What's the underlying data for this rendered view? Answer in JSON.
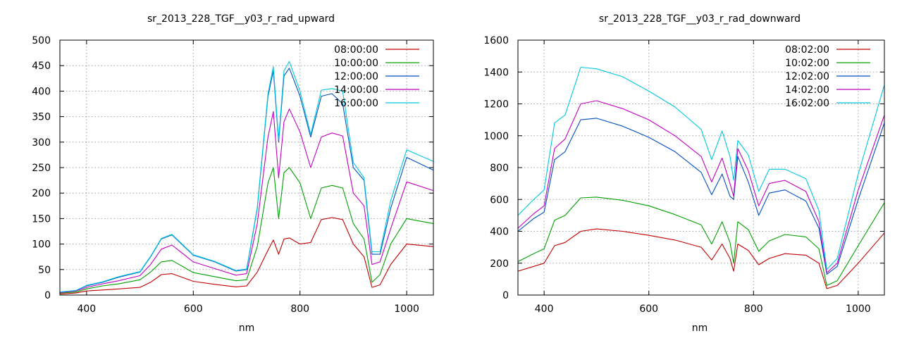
{
  "colors": [
    "#c00000",
    "#00a000",
    "#0050c0",
    "#c000c0",
    "#00c8e0"
  ],
  "chart_data": [
    {
      "type": "line",
      "title": "sr_2013_228_TGF__y03_r_rad_upward",
      "xlabel": "nm",
      "ylabel": "",
      "xlim": [
        350,
        1050
      ],
      "ylim": [
        0,
        500
      ],
      "xticks": [
        400,
        600,
        800,
        1000
      ],
      "yticks": [
        0,
        50,
        100,
        150,
        200,
        250,
        300,
        350,
        400,
        450,
        500
      ],
      "grid": true,
      "legend_position": "top-right",
      "legend": [
        "08:00:00",
        "10:00:00",
        "12:00:00",
        "14:00:00",
        "16:00:00"
      ],
      "x": [
        350,
        380,
        400,
        430,
        460,
        500,
        520,
        540,
        560,
        600,
        640,
        680,
        700,
        720,
        740,
        750,
        760,
        770,
        780,
        800,
        820,
        840,
        860,
        880,
        900,
        920,
        935,
        950,
        970,
        1000,
        1050
      ],
      "series": [
        {
          "values": [
            2,
            4,
            8,
            10,
            12,
            15,
            25,
            40,
            42,
            27,
            21,
            16,
            18,
            45,
            88,
            108,
            80,
            110,
            112,
            100,
            103,
            148,
            152,
            148,
            100,
            75,
            15,
            20,
            60,
            100,
            95
          ]
        },
        {
          "values": [
            4,
            6,
            12,
            18,
            22,
            30,
            45,
            65,
            68,
            44,
            36,
            28,
            30,
            95,
            220,
            250,
            150,
            240,
            250,
            220,
            150,
            210,
            215,
            210,
            140,
            110,
            25,
            40,
            100,
            150,
            140
          ]
        },
        {
          "values": [
            6,
            9,
            18,
            25,
            35,
            45,
            75,
            110,
            118,
            78,
            65,
            47,
            50,
            170,
            390,
            440,
            300,
            430,
            445,
            390,
            310,
            390,
            395,
            375,
            250,
            225,
            80,
            80,
            170,
            270,
            245
          ]
        },
        {
          "values": [
            5,
            8,
            15,
            22,
            28,
            38,
            60,
            90,
            98,
            65,
            52,
            39,
            42,
            140,
            310,
            360,
            230,
            340,
            365,
            320,
            250,
            310,
            318,
            312,
            200,
            175,
            60,
            65,
            130,
            222,
            205
          ]
        },
        {
          "values": [
            6,
            9,
            19,
            26,
            36,
            46,
            76,
            111,
            119,
            79,
            66,
            48,
            51,
            172,
            395,
            448,
            305,
            440,
            458,
            400,
            315,
            402,
            405,
            400,
            260,
            230,
            85,
            85,
            185,
            285,
            262
          ]
        }
      ]
    },
    {
      "type": "line",
      "title": "sr_2013_228_TGF__y03_r_rad_downward",
      "xlabel": "nm",
      "ylabel": "",
      "xlim": [
        350,
        1050
      ],
      "ylim": [
        0,
        1600
      ],
      "xticks": [
        400,
        600,
        800,
        1000
      ],
      "yticks": [
        0,
        200,
        400,
        600,
        800,
        1000,
        1200,
        1400,
        1600
      ],
      "grid": true,
      "legend_position": "top-right",
      "legend": [
        "08:02:00",
        "10:02:00",
        "12:02:00",
        "14:02:00",
        "16:02:00"
      ],
      "x": [
        350,
        380,
        400,
        420,
        440,
        470,
        500,
        550,
        600,
        650,
        700,
        720,
        740,
        755,
        762,
        770,
        790,
        810,
        830,
        860,
        900,
        925,
        940,
        960,
        1000,
        1050
      ],
      "series": [
        {
          "values": [
            150,
            180,
            200,
            310,
            330,
            400,
            415,
            400,
            375,
            345,
            300,
            220,
            320,
            230,
            150,
            320,
            280,
            190,
            230,
            260,
            250,
            200,
            40,
            60,
            200,
            390
          ]
        },
        {
          "values": [
            210,
            260,
            290,
            470,
            500,
            610,
            615,
            595,
            560,
            505,
            440,
            320,
            460,
            330,
            200,
            460,
            410,
            275,
            340,
            380,
            365,
            290,
            60,
            90,
            310,
            580
          ]
        },
        {
          "values": [
            400,
            480,
            520,
            850,
            900,
            1100,
            1110,
            1060,
            990,
            900,
            770,
            630,
            760,
            620,
            600,
            870,
            710,
            500,
            640,
            660,
            590,
            420,
            130,
            180,
            600,
            1080
          ]
        },
        {
          "values": [
            420,
            510,
            560,
            920,
            980,
            1200,
            1220,
            1170,
            1100,
            1000,
            870,
            710,
            860,
            700,
            620,
            920,
            780,
            560,
            700,
            720,
            650,
            460,
            140,
            200,
            660,
            1130
          ]
        },
        {
          "values": [
            500,
            600,
            660,
            1080,
            1130,
            1430,
            1420,
            1370,
            1280,
            1180,
            1040,
            850,
            1030,
            870,
            720,
            970,
            880,
            650,
            790,
            790,
            730,
            530,
            160,
            230,
            760,
            1320
          ]
        }
      ]
    }
  ]
}
